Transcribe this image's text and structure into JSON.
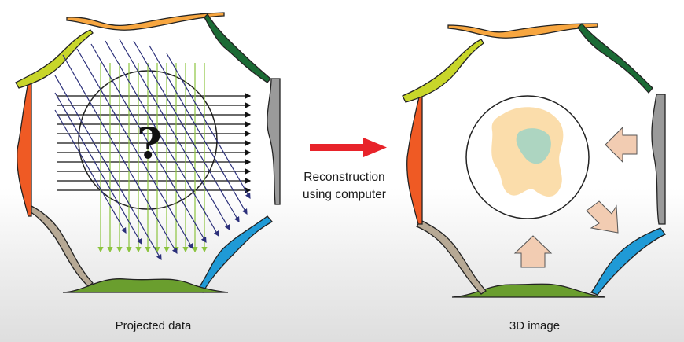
{
  "labels": {
    "left_caption": "Projected data",
    "right_caption": "3D image",
    "middle_line1": "Reconstruction",
    "middle_line2": "using computer",
    "unknown_symbol": "?"
  },
  "colors": {
    "top": "#f7a640",
    "top_right": "#1b6b35",
    "right": "#9a9a9a",
    "bottom_right": "#1f9ad6",
    "bottom": "#6a9e2e",
    "bottom_left": "#b7a995",
    "left": "#ef5a24",
    "top_left": "#c8d62a",
    "arrow_red": "#e8232a",
    "rays_black": "#111111",
    "rays_green": "#8cc43f",
    "rays_navy": "#2b2f7a",
    "object_outer": "#fbd9a2",
    "object_inner": "#9fd4c4",
    "hint_arrow": "#f2ccb2"
  },
  "icons": [
    "question-mark",
    "right-arrow-icon",
    "up-arrow-icon",
    "left-arrow-icon",
    "diagonal-arrow-icon"
  ]
}
